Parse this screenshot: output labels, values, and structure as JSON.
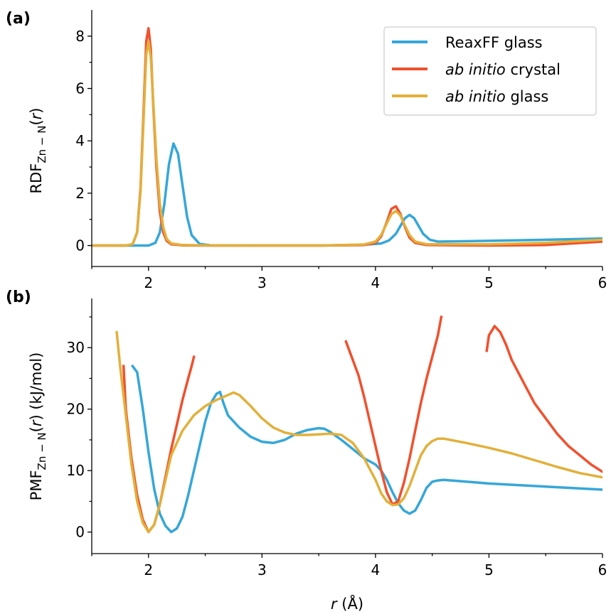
{
  "figure": {
    "panel_a_label": "(a)",
    "panel_b_label": "(b)"
  },
  "colors": {
    "ReaxFF glass": "#35a7d8",
    "ab initio crystal": "#f1502e",
    "ab initio glass": "#e2b03a"
  },
  "chart_data": [
    {
      "panel": "(a)",
      "type": "line",
      "xlabel": "r (Å)",
      "ylabel": "RDF_Zn−N(r)",
      "xlim": [
        1.5,
        6.0
      ],
      "ylim": [
        -0.8,
        9.0
      ],
      "xticks": [
        2,
        3,
        4,
        5,
        6
      ],
      "yticks": [
        0,
        2,
        4,
        6,
        8
      ],
      "grid": false,
      "legend": "top-right",
      "series": [
        {
          "name": "ReaxFF glass",
          "color": "#35a7d8",
          "x": [
            1.5,
            2.0,
            2.06,
            2.1,
            2.14,
            2.18,
            2.22,
            2.26,
            2.3,
            2.34,
            2.38,
            2.45,
            2.55,
            3.0,
            3.5,
            3.9,
            4.05,
            4.12,
            4.18,
            4.22,
            4.26,
            4.3,
            4.34,
            4.38,
            4.42,
            4.48,
            4.55,
            5.0,
            5.5,
            6.0
          ],
          "y": [
            0,
            0,
            0.1,
            0.5,
            1.6,
            3.1,
            3.9,
            3.5,
            2.3,
            1.1,
            0.4,
            0.06,
            0.01,
            0,
            0,
            0.03,
            0.08,
            0.2,
            0.45,
            0.75,
            1.05,
            1.17,
            1.05,
            0.75,
            0.45,
            0.22,
            0.15,
            0.18,
            0.22,
            0.27
          ]
        },
        {
          "name": "ab initio crystal",
          "color": "#f1502e",
          "x": [
            1.5,
            1.8,
            1.86,
            1.9,
            1.93,
            1.96,
            1.98,
            2.0,
            2.02,
            2.04,
            2.07,
            2.1,
            2.13,
            2.16,
            2.2,
            2.3,
            2.5,
            3.0,
            3.5,
            3.9,
            4.0,
            4.05,
            4.1,
            4.14,
            4.18,
            4.22,
            4.26,
            4.3,
            4.35,
            4.45,
            5.0,
            5.5,
            6.0
          ],
          "y": [
            0,
            0,
            0.05,
            0.5,
            2.2,
            5.5,
            7.8,
            8.3,
            7.5,
            5.5,
            3.0,
            1.3,
            0.5,
            0.18,
            0.05,
            0.01,
            0,
            0,
            0,
            0.02,
            0.1,
            0.35,
            0.9,
            1.4,
            1.5,
            1.2,
            0.7,
            0.3,
            0.1,
            0.02,
            0,
            0.02,
            0.15
          ]
        },
        {
          "name": "ab initio glass",
          "color": "#e2b03a",
          "x": [
            1.5,
            1.8,
            1.86,
            1.9,
            1.93,
            1.96,
            1.98,
            2.0,
            2.02,
            2.04,
            2.07,
            2.1,
            2.13,
            2.16,
            2.2,
            2.3,
            2.5,
            3.0,
            3.5,
            3.9,
            4.0,
            4.05,
            4.1,
            4.14,
            4.18,
            4.22,
            4.26,
            4.3,
            4.35,
            4.45,
            5.0,
            5.5,
            6.0
          ],
          "y": [
            0,
            0,
            0.05,
            0.5,
            2.1,
            5.2,
            7.3,
            7.8,
            7.2,
            5.6,
            3.3,
            1.6,
            0.7,
            0.25,
            0.08,
            0.02,
            0.01,
            0,
            0,
            0.04,
            0.15,
            0.4,
            0.85,
            1.2,
            1.32,
            1.15,
            0.75,
            0.4,
            0.15,
            0.05,
            0.05,
            0.1,
            0.22
          ]
        }
      ]
    },
    {
      "panel": "(b)",
      "type": "line",
      "xlabel": "r (Å)",
      "ylabel": "PMF_Zn−N(r) (kJ/mol)",
      "xlim": [
        1.5,
        6.0
      ],
      "ylim": [
        -3.5,
        38.0
      ],
      "xticks": [
        2,
        3,
        4,
        5,
        6
      ],
      "yticks": [
        0,
        10,
        20,
        30
      ],
      "grid": false,
      "series": [
        {
          "name": "ReaxFF glass",
          "color": "#35a7d8",
          "segments": [
            {
              "x": [
                1.86,
                1.9,
                1.95,
                2.0,
                2.05,
                2.1,
                2.15,
                2.2,
                2.25,
                2.3,
                2.35,
                2.4,
                2.45,
                2.5,
                2.55,
                2.6,
                2.63,
                2.66,
                2.7,
                2.8,
                2.9,
                3.0,
                3.1,
                3.2,
                3.3,
                3.4,
                3.5,
                3.55,
                3.6,
                3.7,
                3.8,
                3.9,
                4.0,
                4.05,
                4.1,
                4.15,
                4.2,
                4.25,
                4.3,
                4.35,
                4.4,
                4.45,
                4.5,
                4.55,
                4.6,
                4.8,
                5.0,
                5.5,
                6.0
              ],
              "y": [
                27,
                26,
                20,
                13,
                7,
                3,
                1,
                0,
                0.6,
                2.5,
                6,
                10,
                14,
                18,
                21,
                22.5,
                22.8,
                21,
                19,
                17,
                15.5,
                14.7,
                14.5,
                15,
                16,
                16.6,
                16.9,
                16.8,
                16.3,
                15,
                13.5,
                12,
                11,
                10,
                8.5,
                6.5,
                4.7,
                3.5,
                3.0,
                3.5,
                5.2,
                7.2,
                8.2,
                8.4,
                8.5,
                8.2,
                7.9,
                7.4,
                6.9
              ]
            }
          ]
        },
        {
          "name": "ab initio crystal",
          "color": "#f1502e",
          "segments": [
            {
              "x": [
                1.78,
                1.8,
                1.85,
                1.9,
                1.95,
                2.0,
                2.05,
                2.1,
                2.15,
                2.2,
                2.25,
                2.3,
                2.35,
                2.38,
                2.4
              ],
              "y": [
                27,
                20,
                12,
                6,
                2,
                0,
                1.2,
                4.5,
                9,
                13.5,
                17.5,
                21.5,
                25,
                27,
                28.5
              ]
            },
            {
              "x": [
                3.74,
                3.8,
                3.85,
                3.9,
                3.95,
                4.0,
                4.05,
                4.1,
                4.15,
                4.2,
                4.25,
                4.3,
                4.35,
                4.4,
                4.45,
                4.5,
                4.55,
                4.58
              ],
              "y": [
                31,
                28,
                25.5,
                22,
                18,
                14,
                10,
                6.5,
                4.5,
                5,
                8,
                12,
                16.5,
                21,
                25,
                28.5,
                32,
                35
              ]
            },
            {
              "x": [
                4.98,
                5.0,
                5.05,
                5.1,
                5.15,
                5.2,
                5.3,
                5.4,
                5.5,
                5.6,
                5.7,
                5.8,
                5.9,
                6.0
              ],
              "y": [
                29.5,
                32,
                33.5,
                32.5,
                30.5,
                28,
                24.5,
                21,
                18.5,
                16,
                14,
                12.5,
                11,
                9.8
              ]
            }
          ]
        },
        {
          "name": "ab initio glass",
          "color": "#e2b03a",
          "segments": [
            {
              "x": [
                1.72,
                1.75,
                1.8,
                1.85,
                1.9,
                1.95,
                2.0,
                2.05,
                2.1,
                2.15,
                2.2,
                2.3,
                2.4,
                2.5,
                2.6,
                2.7,
                2.75,
                2.8,
                2.9,
                3.0,
                3.1,
                3.2,
                3.3,
                3.4,
                3.5,
                3.6,
                3.7,
                3.8,
                3.9,
                4.0,
                4.05,
                4.1,
                4.15,
                4.2,
                4.25,
                4.3,
                4.35,
                4.4,
                4.45,
                4.5,
                4.55,
                4.6,
                4.8,
                5.0,
                5.2,
                5.4,
                5.6,
                5.8,
                6.0
              ],
              "y": [
                32.5,
                27,
                19,
                11,
                5,
                1.5,
                0,
                1.2,
                4.5,
                8.5,
                12.5,
                16.5,
                19,
                20.5,
                21.5,
                22.3,
                22.7,
                22.3,
                20.5,
                18.5,
                17,
                16.2,
                15.8,
                15.8,
                15.9,
                16,
                15.8,
                14.5,
                12,
                8.5,
                6.3,
                5,
                4.4,
                4.5,
                5.5,
                7.5,
                10,
                12.5,
                14,
                14.8,
                15.2,
                15.2,
                14.5,
                13.7,
                12.8,
                11.7,
                10.6,
                9.6,
                8.9
              ]
            }
          ]
        }
      ]
    }
  ]
}
